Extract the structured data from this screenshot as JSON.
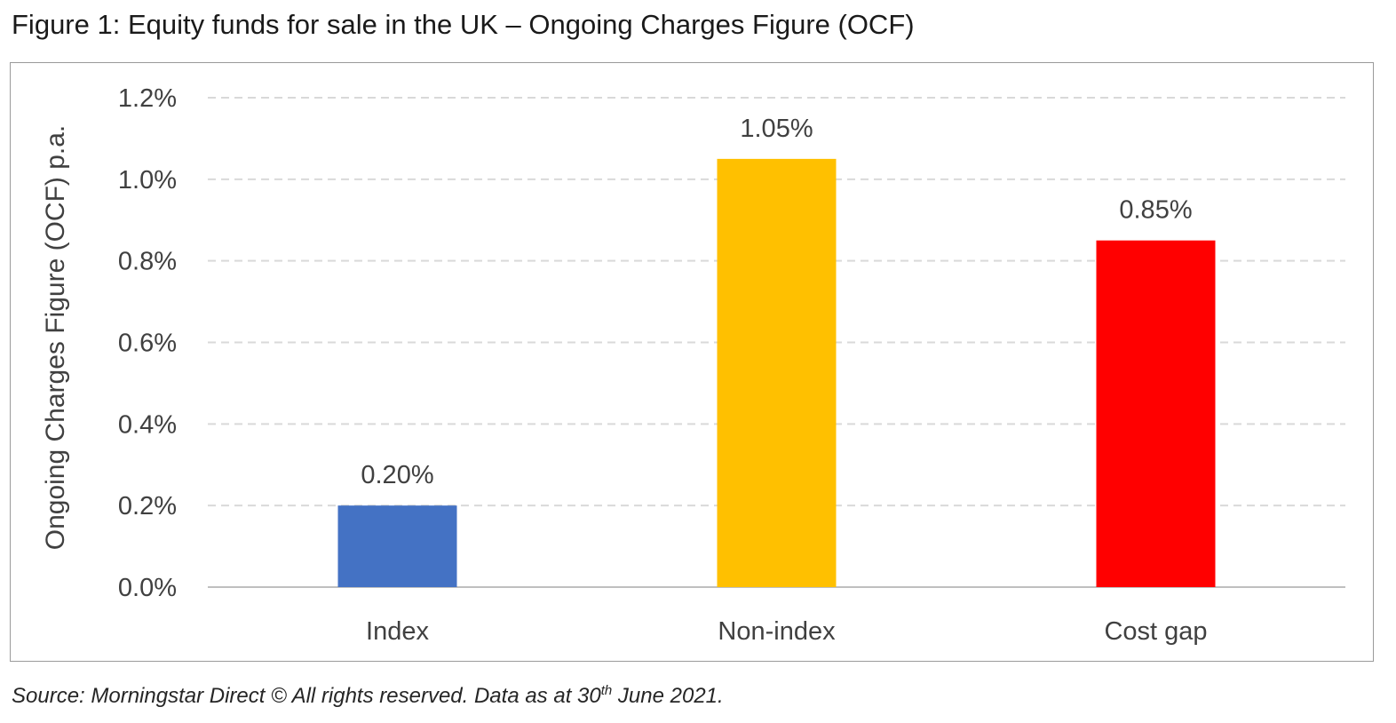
{
  "figure": {
    "title": "Figure 1: Equity funds for sale in the UK – Ongoing Charges Figure (OCF)",
    "source_prefix": "Source: Morningstar Direct © All rights reserved. Data as at 30",
    "source_sup": "th",
    "source_suffix": " June 2021."
  },
  "chart_data": {
    "type": "bar",
    "title": "",
    "xlabel": "",
    "ylabel": "Ongoing Charges Figure (OCF) p.a.",
    "categories": [
      "Index",
      "Non-index",
      "Cost gap"
    ],
    "values": [
      0.2,
      1.05,
      0.85
    ],
    "data_labels": [
      "0.20%",
      "1.05%",
      "0.85%"
    ],
    "colors": [
      "#4472C4",
      "#FFC000",
      "#FF0000"
    ],
    "ylim": [
      0,
      1.2
    ],
    "yticks": [
      0.0,
      0.2,
      0.4,
      0.6,
      0.8,
      1.0,
      1.2
    ],
    "ytick_labels": [
      "0.0%",
      "0.2%",
      "0.4%",
      "0.6%",
      "0.8%",
      "1.0%",
      "1.2%"
    ],
    "grid": true,
    "legend": "none"
  }
}
